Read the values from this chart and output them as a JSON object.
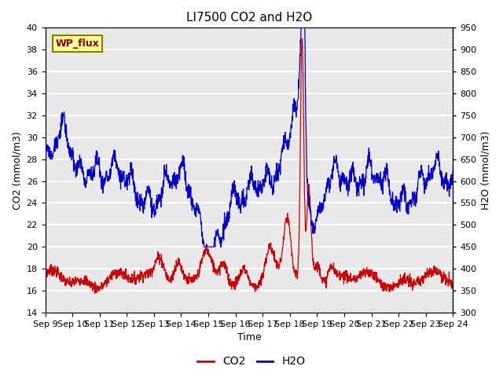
{
  "title": "LI7500 CO2 and H2O",
  "xlabel": "Time",
  "ylabel_left": "CO2 (mmol/m3)",
  "ylabel_right": "H2O (mmol/m3)",
  "annotation": "WP_flux",
  "ylim_left": [
    14,
    40
  ],
  "ylim_right": [
    300,
    950
  ],
  "yticks_left": [
    14,
    16,
    18,
    20,
    22,
    24,
    26,
    28,
    30,
    32,
    34,
    36,
    38,
    40
  ],
  "yticks_right": [
    300,
    350,
    400,
    450,
    500,
    550,
    600,
    650,
    700,
    750,
    800,
    850,
    900,
    950
  ],
  "xtick_labels": [
    "Sep 9",
    "Sep 10",
    "Sep 11",
    "Sep 12",
    "Sep 13",
    "Sep 14",
    "Sep 15",
    "Sep 16",
    "Sep 17",
    "Sep 18",
    "Sep 19",
    "Sep 20",
    "Sep 21",
    "Sep 22",
    "Sep 23",
    "Sep 24"
  ],
  "background_color": "#e8e8e8",
  "grid_color": "#ffffff",
  "co2_color": "#cc0000",
  "h2o_color": "#0000cc",
  "title_fontsize": 11,
  "label_fontsize": 9,
  "tick_fontsize": 8,
  "figsize": [
    6.4,
    4.8
  ],
  "dpi": 100
}
